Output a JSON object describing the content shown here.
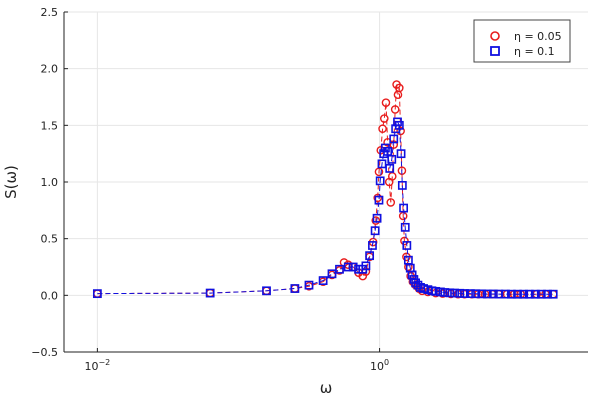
{
  "chart_data": {
    "type": "scatter",
    "xlabel": "ω",
    "ylabel": "S(ω)",
    "x_scale": "log10",
    "xlim": [
      0.0058,
      30
    ],
    "ylim": [
      -0.5,
      2.5
    ],
    "grid": true,
    "legend_position": "top-right",
    "x_ticks": [
      {
        "value": 0.01,
        "base": "10",
        "exp": "−2"
      },
      {
        "value": 1,
        "base": "10",
        "exp": "0"
      }
    ],
    "y_ticks": [
      {
        "value": -0.5,
        "label": "−0.5"
      },
      {
        "value": 0.0,
        "label": "0.0"
      },
      {
        "value": 0.5,
        "label": "0.5"
      },
      {
        "value": 1.0,
        "label": "1.0"
      },
      {
        "value": 1.5,
        "label": "1.5"
      },
      {
        "value": 2.0,
        "label": "2.0"
      },
      {
        "value": 2.5,
        "label": "2.5"
      }
    ],
    "series": [
      {
        "name": "η = 0.05",
        "color": "#e81c1c",
        "marker": "circle",
        "points": [
          [
            0.01,
            0.015
          ],
          [
            0.063,
            0.02
          ],
          [
            0.158,
            0.04
          ],
          [
            0.251,
            0.06
          ],
          [
            0.316,
            0.08
          ],
          [
            0.398,
            0.12
          ],
          [
            0.46,
            0.18
          ],
          [
            0.52,
            0.22
          ],
          [
            0.56,
            0.29
          ],
          [
            0.6,
            0.27
          ],
          [
            0.65,
            0.25
          ],
          [
            0.71,
            0.2
          ],
          [
            0.76,
            0.17
          ],
          [
            0.8,
            0.21
          ],
          [
            0.85,
            0.34
          ],
          [
            0.9,
            0.47
          ],
          [
            0.94,
            0.66
          ],
          [
            0.97,
            0.86
          ],
          [
            0.99,
            1.09
          ],
          [
            1.02,
            1.28
          ],
          [
            1.05,
            1.47
          ],
          [
            1.08,
            1.56
          ],
          [
            1.11,
            1.7
          ],
          [
            1.14,
            1.35
          ],
          [
            1.17,
            1.0
          ],
          [
            1.2,
            0.82
          ],
          [
            1.23,
            1.05
          ],
          [
            1.26,
            1.33
          ],
          [
            1.29,
            1.64
          ],
          [
            1.32,
            1.86
          ],
          [
            1.35,
            1.77
          ],
          [
            1.38,
            1.83
          ],
          [
            1.41,
            1.45
          ],
          [
            1.44,
            1.1
          ],
          [
            1.47,
            0.7
          ],
          [
            1.5,
            0.48
          ],
          [
            1.55,
            0.34
          ],
          [
            1.6,
            0.25
          ],
          [
            1.66,
            0.17
          ],
          [
            1.72,
            0.12
          ],
          [
            1.8,
            0.09
          ],
          [
            1.9,
            0.06
          ],
          [
            2.0,
            0.04
          ],
          [
            2.2,
            0.03
          ],
          [
            2.5,
            0.02
          ],
          [
            2.8,
            0.015
          ],
          [
            3.2,
            0.012
          ],
          [
            3.6,
            0.01
          ],
          [
            4.0,
            0.01
          ],
          [
            4.5,
            0.01
          ],
          [
            5.0,
            0.01
          ],
          [
            5.6,
            0.01
          ],
          [
            6.3,
            0.01
          ],
          [
            7.0,
            0.01
          ],
          [
            8.0,
            0.01
          ],
          [
            9.0,
            0.01
          ],
          [
            10.0,
            0.01
          ],
          [
            11.5,
            0.01
          ],
          [
            13.0,
            0.01
          ],
          [
            15.0,
            0.01
          ],
          [
            17.0,
            0.01
          ]
        ]
      },
      {
        "name": "η = 0.1",
        "color": "#1010e0",
        "marker": "square",
        "points": [
          [
            0.01,
            0.015
          ],
          [
            0.063,
            0.02
          ],
          [
            0.158,
            0.04
          ],
          [
            0.251,
            0.06
          ],
          [
            0.316,
            0.09
          ],
          [
            0.398,
            0.13
          ],
          [
            0.46,
            0.19
          ],
          [
            0.52,
            0.23
          ],
          [
            0.6,
            0.25
          ],
          [
            0.65,
            0.25
          ],
          [
            0.71,
            0.23
          ],
          [
            0.76,
            0.23
          ],
          [
            0.8,
            0.26
          ],
          [
            0.85,
            0.35
          ],
          [
            0.89,
            0.44
          ],
          [
            0.93,
            0.57
          ],
          [
            0.96,
            0.68
          ],
          [
            0.99,
            0.84
          ],
          [
            1.01,
            1.01
          ],
          [
            1.04,
            1.16
          ],
          [
            1.07,
            1.25
          ],
          [
            1.1,
            1.3
          ],
          [
            1.14,
            1.27
          ],
          [
            1.18,
            1.12
          ],
          [
            1.22,
            1.2
          ],
          [
            1.26,
            1.38
          ],
          [
            1.3,
            1.47
          ],
          [
            1.34,
            1.53
          ],
          [
            1.38,
            1.5
          ],
          [
            1.42,
            1.25
          ],
          [
            1.45,
            0.97
          ],
          [
            1.48,
            0.77
          ],
          [
            1.52,
            0.6
          ],
          [
            1.56,
            0.44
          ],
          [
            1.6,
            0.31
          ],
          [
            1.65,
            0.24
          ],
          [
            1.7,
            0.18
          ],
          [
            1.75,
            0.14
          ],
          [
            1.8,
            0.11
          ],
          [
            1.87,
            0.09
          ],
          [
            1.95,
            0.07
          ],
          [
            2.05,
            0.06
          ],
          [
            2.2,
            0.05
          ],
          [
            2.35,
            0.04
          ],
          [
            2.5,
            0.035
          ],
          [
            2.7,
            0.03
          ],
          [
            2.9,
            0.025
          ],
          [
            3.15,
            0.022
          ],
          [
            3.4,
            0.02
          ],
          [
            3.7,
            0.018
          ],
          [
            4.0,
            0.016
          ],
          [
            4.4,
            0.015
          ],
          [
            4.8,
            0.014
          ],
          [
            5.3,
            0.013
          ],
          [
            5.8,
            0.012
          ],
          [
            6.4,
            0.012
          ],
          [
            7.0,
            0.011
          ],
          [
            7.8,
            0.011
          ],
          [
            8.6,
            0.01
          ],
          [
            9.5,
            0.01
          ],
          [
            10.5,
            0.01
          ],
          [
            11.5,
            0.01
          ],
          [
            12.7,
            0.01
          ],
          [
            14.0,
            0.01
          ],
          [
            15.5,
            0.01
          ],
          [
            17.0,
            0.01
          ]
        ]
      }
    ]
  }
}
